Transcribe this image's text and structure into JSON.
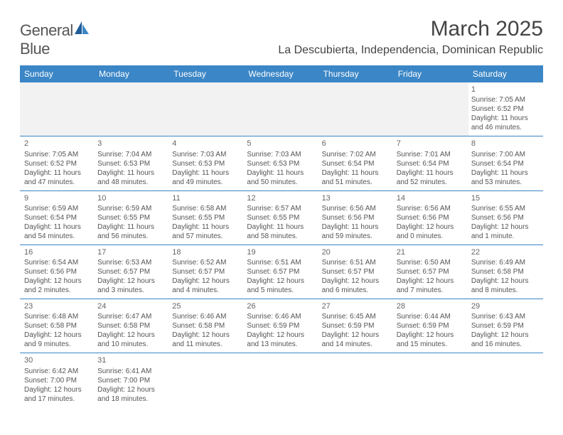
{
  "logo": {
    "prefix": "General",
    "suffix": "Blue"
  },
  "title": "March 2025",
  "location": "La Descubierta, Independencia, Dominican Republic",
  "colors": {
    "header_bg": "#3b86c6",
    "header_text": "#ffffff",
    "title_text": "#444444",
    "body_text": "#555555",
    "logo_text": "#555555",
    "row_border": "#3b86c6",
    "empty_bg": "#f2f2f2"
  },
  "day_headers": [
    "Sunday",
    "Monday",
    "Tuesday",
    "Wednesday",
    "Thursday",
    "Friday",
    "Saturday"
  ],
  "weeks": [
    [
      null,
      null,
      null,
      null,
      null,
      null,
      {
        "n": "1",
        "sr": "Sunrise: 7:05 AM",
        "ss": "Sunset: 6:52 PM",
        "dl": "Daylight: 11 hours and 46 minutes."
      }
    ],
    [
      {
        "n": "2",
        "sr": "Sunrise: 7:05 AM",
        "ss": "Sunset: 6:52 PM",
        "dl": "Daylight: 11 hours and 47 minutes."
      },
      {
        "n": "3",
        "sr": "Sunrise: 7:04 AM",
        "ss": "Sunset: 6:53 PM",
        "dl": "Daylight: 11 hours and 48 minutes."
      },
      {
        "n": "4",
        "sr": "Sunrise: 7:03 AM",
        "ss": "Sunset: 6:53 PM",
        "dl": "Daylight: 11 hours and 49 minutes."
      },
      {
        "n": "5",
        "sr": "Sunrise: 7:03 AM",
        "ss": "Sunset: 6:53 PM",
        "dl": "Daylight: 11 hours and 50 minutes."
      },
      {
        "n": "6",
        "sr": "Sunrise: 7:02 AM",
        "ss": "Sunset: 6:54 PM",
        "dl": "Daylight: 11 hours and 51 minutes."
      },
      {
        "n": "7",
        "sr": "Sunrise: 7:01 AM",
        "ss": "Sunset: 6:54 PM",
        "dl": "Daylight: 11 hours and 52 minutes."
      },
      {
        "n": "8",
        "sr": "Sunrise: 7:00 AM",
        "ss": "Sunset: 6:54 PM",
        "dl": "Daylight: 11 hours and 53 minutes."
      }
    ],
    [
      {
        "n": "9",
        "sr": "Sunrise: 6:59 AM",
        "ss": "Sunset: 6:54 PM",
        "dl": "Daylight: 11 hours and 54 minutes."
      },
      {
        "n": "10",
        "sr": "Sunrise: 6:59 AM",
        "ss": "Sunset: 6:55 PM",
        "dl": "Daylight: 11 hours and 56 minutes."
      },
      {
        "n": "11",
        "sr": "Sunrise: 6:58 AM",
        "ss": "Sunset: 6:55 PM",
        "dl": "Daylight: 11 hours and 57 minutes."
      },
      {
        "n": "12",
        "sr": "Sunrise: 6:57 AM",
        "ss": "Sunset: 6:55 PM",
        "dl": "Daylight: 11 hours and 58 minutes."
      },
      {
        "n": "13",
        "sr": "Sunrise: 6:56 AM",
        "ss": "Sunset: 6:56 PM",
        "dl": "Daylight: 11 hours and 59 minutes."
      },
      {
        "n": "14",
        "sr": "Sunrise: 6:56 AM",
        "ss": "Sunset: 6:56 PM",
        "dl": "Daylight: 12 hours and 0 minutes."
      },
      {
        "n": "15",
        "sr": "Sunrise: 6:55 AM",
        "ss": "Sunset: 6:56 PM",
        "dl": "Daylight: 12 hours and 1 minute."
      }
    ],
    [
      {
        "n": "16",
        "sr": "Sunrise: 6:54 AM",
        "ss": "Sunset: 6:56 PM",
        "dl": "Daylight: 12 hours and 2 minutes."
      },
      {
        "n": "17",
        "sr": "Sunrise: 6:53 AM",
        "ss": "Sunset: 6:57 PM",
        "dl": "Daylight: 12 hours and 3 minutes."
      },
      {
        "n": "18",
        "sr": "Sunrise: 6:52 AM",
        "ss": "Sunset: 6:57 PM",
        "dl": "Daylight: 12 hours and 4 minutes."
      },
      {
        "n": "19",
        "sr": "Sunrise: 6:51 AM",
        "ss": "Sunset: 6:57 PM",
        "dl": "Daylight: 12 hours and 5 minutes."
      },
      {
        "n": "20",
        "sr": "Sunrise: 6:51 AM",
        "ss": "Sunset: 6:57 PM",
        "dl": "Daylight: 12 hours and 6 minutes."
      },
      {
        "n": "21",
        "sr": "Sunrise: 6:50 AM",
        "ss": "Sunset: 6:57 PM",
        "dl": "Daylight: 12 hours and 7 minutes."
      },
      {
        "n": "22",
        "sr": "Sunrise: 6:49 AM",
        "ss": "Sunset: 6:58 PM",
        "dl": "Daylight: 12 hours and 8 minutes."
      }
    ],
    [
      {
        "n": "23",
        "sr": "Sunrise: 6:48 AM",
        "ss": "Sunset: 6:58 PM",
        "dl": "Daylight: 12 hours and 9 minutes."
      },
      {
        "n": "24",
        "sr": "Sunrise: 6:47 AM",
        "ss": "Sunset: 6:58 PM",
        "dl": "Daylight: 12 hours and 10 minutes."
      },
      {
        "n": "25",
        "sr": "Sunrise: 6:46 AM",
        "ss": "Sunset: 6:58 PM",
        "dl": "Daylight: 12 hours and 11 minutes."
      },
      {
        "n": "26",
        "sr": "Sunrise: 6:46 AM",
        "ss": "Sunset: 6:59 PM",
        "dl": "Daylight: 12 hours and 13 minutes."
      },
      {
        "n": "27",
        "sr": "Sunrise: 6:45 AM",
        "ss": "Sunset: 6:59 PM",
        "dl": "Daylight: 12 hours and 14 minutes."
      },
      {
        "n": "28",
        "sr": "Sunrise: 6:44 AM",
        "ss": "Sunset: 6:59 PM",
        "dl": "Daylight: 12 hours and 15 minutes."
      },
      {
        "n": "29",
        "sr": "Sunrise: 6:43 AM",
        "ss": "Sunset: 6:59 PM",
        "dl": "Daylight: 12 hours and 16 minutes."
      }
    ],
    [
      {
        "n": "30",
        "sr": "Sunrise: 6:42 AM",
        "ss": "Sunset: 7:00 PM",
        "dl": "Daylight: 12 hours and 17 minutes."
      },
      {
        "n": "31",
        "sr": "Sunrise: 6:41 AM",
        "ss": "Sunset: 7:00 PM",
        "dl": "Daylight: 12 hours and 18 minutes."
      },
      null,
      null,
      null,
      null,
      null
    ]
  ]
}
